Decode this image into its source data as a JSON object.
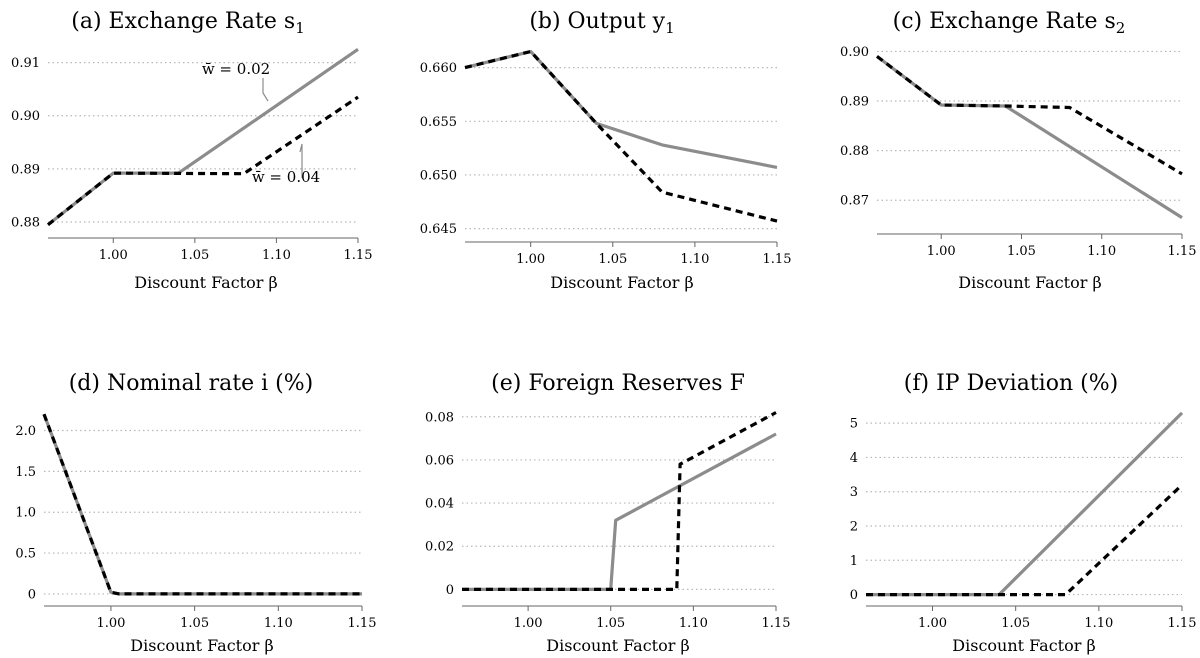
{
  "chart_data": [
    {
      "type": "line",
      "title": "(a) Exchange Rate s",
      "title_sub": "1",
      "xlabel": "Discount Factor β",
      "xlim": [
        0.96,
        1.15
      ],
      "ylim": [
        0.8785,
        0.9135
      ],
      "xticks": [
        "1.00",
        "1.05",
        "1.10",
        "1.15"
      ],
      "yticks": [
        "0.88",
        "0.89",
        "0.90",
        "0.91"
      ],
      "grid": true,
      "series": [
        {
          "name": "w̄ = 0.02",
          "style": "solid",
          "color": "#8c8c8c",
          "x": [
            0.96,
            1.0,
            1.04,
            1.15
          ],
          "y": [
            0.8795,
            0.8892,
            0.8892,
            0.9125
          ]
        },
        {
          "name": "w̄ = 0.04",
          "style": "dashed",
          "color": "#000000",
          "x": [
            0.96,
            1.0,
            1.08,
            1.15
          ],
          "y": [
            0.8795,
            0.8892,
            0.8891,
            0.9035
          ]
        }
      ],
      "annotations": [
        {
          "text": "w̄ = 0.02",
          "series": 0
        },
        {
          "text": "w̄ = 0.04",
          "series": 1
        }
      ]
    },
    {
      "type": "line",
      "title": "(b) Output y",
      "title_sub": "1",
      "xlabel": "Discount Factor β",
      "xlim": [
        0.96,
        1.15
      ],
      "ylim": [
        0.6445,
        0.6622
      ],
      "xticks": [
        "1.00",
        "1.05",
        "1.10",
        "1.15"
      ],
      "yticks": [
        "0.645",
        "0.650",
        "0.655",
        "0.660"
      ],
      "grid": true,
      "series": [
        {
          "style": "solid",
          "color": "#8c8c8c",
          "x": [
            0.96,
            1.0,
            1.04,
            1.08,
            1.15
          ],
          "y": [
            0.66,
            0.6615,
            0.6548,
            0.6528,
            0.6507
          ]
        },
        {
          "style": "dashed",
          "color": "#000000",
          "x": [
            0.96,
            1.0,
            1.04,
            1.08,
            1.15
          ],
          "y": [
            0.66,
            0.6615,
            0.6548,
            0.6484,
            0.6457
          ]
        }
      ]
    },
    {
      "type": "line",
      "title": "(c) Exchange Rate s",
      "title_sub": "2",
      "xlabel": "Discount Factor β",
      "xlim": [
        0.96,
        1.15
      ],
      "ylim": [
        0.8648,
        0.9015
      ],
      "xticks": [
        "1.00",
        "1.05",
        "1.10",
        "1.15"
      ],
      "yticks": [
        "0.87",
        "0.88",
        "0.89",
        "0.90"
      ],
      "grid": true,
      "series": [
        {
          "style": "solid",
          "color": "#8c8c8c",
          "x": [
            0.96,
            1.0,
            1.04,
            1.15
          ],
          "y": [
            0.899,
            0.8892,
            0.889,
            0.8665
          ]
        },
        {
          "style": "dashed",
          "color": "#000000",
          "x": [
            0.96,
            1.0,
            1.04,
            1.08,
            1.15
          ],
          "y": [
            0.899,
            0.8892,
            0.889,
            0.8887,
            0.8753
          ]
        }
      ]
    },
    {
      "type": "line",
      "title": "(d) Nominal rate i (%)",
      "xlabel": "Discount Factor β",
      "xlim": [
        0.96,
        1.15
      ],
      "ylim": [
        -0.05,
        2.3
      ],
      "xticks": [
        "1.00",
        "1.05",
        "1.10",
        "1.15"
      ],
      "yticks": [
        "0",
        "0.5",
        "1.0",
        "1.5",
        "2.0"
      ],
      "grid": true,
      "series": [
        {
          "style": "solid",
          "color": "#8c8c8c",
          "x": [
            0.96,
            1.0,
            1.005,
            1.15
          ],
          "y": [
            2.2,
            0.02,
            0.0,
            0.0
          ]
        },
        {
          "style": "dashed",
          "color": "#000000",
          "x": [
            0.96,
            1.0,
            1.005,
            1.15
          ],
          "y": [
            2.2,
            0.02,
            0.0,
            0.0
          ]
        }
      ]
    },
    {
      "type": "line",
      "title": "(e) Foreign Reserves F",
      "xlabel": "Discount Factor β",
      "xlim": [
        0.96,
        1.15
      ],
      "ylim": [
        -0.004,
        0.085
      ],
      "xticks": [
        "1.00",
        "1.05",
        "1.10",
        "1.15"
      ],
      "yticks": [
        "0",
        "0.02",
        "0.04",
        "0.06",
        "0.08"
      ],
      "grid": true,
      "series": [
        {
          "style": "solid",
          "color": "#8c8c8c",
          "x": [
            0.96,
            1.05,
            1.053,
            1.15
          ],
          "y": [
            0.0,
            0.0,
            0.032,
            0.072
          ]
        },
        {
          "style": "dashed",
          "color": "#000000",
          "x": [
            0.96,
            1.09,
            1.092,
            1.15
          ],
          "y": [
            0.0,
            0.0,
            0.058,
            0.082
          ]
        }
      ]
    },
    {
      "type": "line",
      "title": "(f) IP Deviation (%)",
      "xlabel": "Discount Factor β",
      "xlim": [
        0.96,
        1.15
      ],
      "ylim": [
        -0.1,
        5.5
      ],
      "xticks": [
        "1.00",
        "1.05",
        "1.10",
        "1.15"
      ],
      "yticks": [
        "0",
        "1",
        "2",
        "3",
        "4",
        "5"
      ],
      "grid": true,
      "series": [
        {
          "style": "solid",
          "color": "#8c8c8c",
          "x": [
            0.96,
            1.04,
            1.15
          ],
          "y": [
            0.0,
            0.0,
            5.3
          ]
        },
        {
          "style": "dashed",
          "color": "#000000",
          "x": [
            0.96,
            1.08,
            1.15
          ],
          "y": [
            0.0,
            0.0,
            3.2
          ]
        }
      ]
    }
  ]
}
